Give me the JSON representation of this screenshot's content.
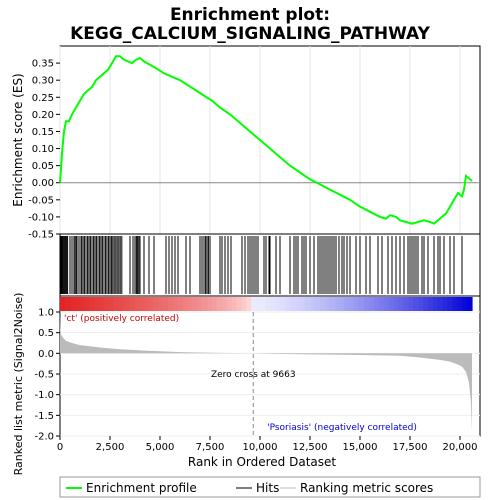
{
  "title_line1": "Enrichment plot:",
  "title_line2": "KEGG_CALCIUM_SIGNALING_PATHWAY",
  "ylabel_top": "Enrichment score (ES)",
  "ylabel_bottom": "Ranked list metric (Signal2Noise)",
  "xlabel": "Rank in Ordered Dataset",
  "annotation_pos": "'ct' (positively correlated)",
  "annotation_neg": "'Psoriasis' (negatively correlated)",
  "zero_cross_label": "Zero cross at 9663",
  "legend": {
    "enrichment": "Enrichment profile",
    "hits": "Hits",
    "ranking": "Ranking metric scores"
  },
  "colors": {
    "enrichment": "#00ff00",
    "positive": "#ff0000",
    "negative": "#0000ff",
    "metric_fill": "#bbbbbb"
  },
  "chart_data": {
    "type": "line",
    "n_genes": 20600,
    "zero_cross": 9663,
    "es": {
      "x": [
        0,
        60,
        120,
        200,
        300,
        450,
        600,
        800,
        1000,
        1200,
        1400,
        1600,
        1800,
        2000,
        2200,
        2400,
        2600,
        2800,
        3000,
        3200,
        3400,
        3600,
        3800,
        4000,
        4200,
        4500,
        4800,
        5200,
        5600,
        6000,
        6400,
        6800,
        7200,
        7600,
        8000,
        8500,
        9000,
        9500,
        10000,
        10500,
        11000,
        11500,
        12000,
        12500,
        13000,
        13500,
        14000,
        14500,
        15000,
        15500,
        16000,
        16300,
        16500,
        16800,
        17000,
        17300,
        17600,
        17900,
        18200,
        18500,
        18700,
        18900,
        19100,
        19300,
        19500,
        19700,
        19900,
        20100,
        20200,
        20300,
        20400,
        20600
      ],
      "y": [
        0.0,
        0.05,
        0.1,
        0.15,
        0.18,
        0.18,
        0.2,
        0.22,
        0.24,
        0.26,
        0.27,
        0.28,
        0.3,
        0.31,
        0.32,
        0.33,
        0.35,
        0.37,
        0.37,
        0.36,
        0.355,
        0.35,
        0.36,
        0.365,
        0.355,
        0.345,
        0.335,
        0.32,
        0.31,
        0.3,
        0.285,
        0.27,
        0.255,
        0.24,
        0.22,
        0.2,
        0.175,
        0.15,
        0.125,
        0.1,
        0.075,
        0.05,
        0.03,
        0.01,
        -0.005,
        -0.02,
        -0.035,
        -0.05,
        -0.07,
        -0.085,
        -0.1,
        -0.105,
        -0.095,
        -0.1,
        -0.11,
        -0.115,
        -0.12,
        -0.115,
        -0.11,
        -0.115,
        -0.12,
        -0.11,
        -0.1,
        -0.09,
        -0.07,
        -0.05,
        -0.03,
        -0.04,
        -0.02,
        0.02,
        0.015,
        0.005
      ],
      "ylim": [
        -0.15,
        0.4
      ],
      "yticks": [
        -0.15,
        -0.1,
        -0.05,
        0.0,
        0.05,
        0.1,
        0.15,
        0.2,
        0.25,
        0.3,
        0.35
      ]
    },
    "metric": {
      "x": [
        0,
        20,
        60,
        150,
        300,
        600,
        1000,
        1500,
        2000,
        3000,
        4000,
        5000,
        6000,
        7000,
        8000,
        9000,
        9663,
        10500,
        12000,
        13500,
        15000,
        16000,
        17000,
        17500,
        18000,
        18500,
        19000,
        19500,
        19800,
        20100,
        20300,
        20450,
        20550,
        20600
      ],
      "y": [
        1.0,
        0.6,
        0.45,
        0.38,
        0.3,
        0.25,
        0.2,
        0.17,
        0.14,
        0.1,
        0.07,
        0.05,
        0.03,
        0.02,
        0.01,
        0.005,
        0.0,
        -0.01,
        -0.02,
        -0.03,
        -0.04,
        -0.05,
        -0.06,
        -0.08,
        -0.1,
        -0.13,
        -0.16,
        -0.2,
        -0.25,
        -0.32,
        -0.45,
        -0.7,
        -1.2,
        -1.9
      ],
      "ylim": [
        -2.0,
        1.0
      ],
      "yticks": [
        -2.0,
        -1.5,
        -1.0,
        -0.5,
        0.0,
        0.5,
        1.0
      ]
    },
    "hits": [
      50,
      90,
      130,
      180,
      230,
      280,
      330,
      380,
      500,
      600,
      700,
      760,
      820,
      900,
      1000,
      1080,
      1150,
      1220,
      1300,
      1380,
      1450,
      1520,
      1600,
      1680,
      1750,
      1820,
      1900,
      1980,
      2050,
      2120,
      2200,
      2280,
      2350,
      2430,
      2500,
      2570,
      2640,
      2710,
      2790,
      2860,
      2940,
      3010,
      3090,
      3500,
      3650,
      3750,
      3820,
      3880,
      3940,
      4000,
      4200,
      4450,
      4700,
      5300,
      5450,
      5600,
      5750,
      5900,
      6300,
      6500,
      7000,
      7100,
      7200,
      7280,
      7350,
      7420,
      7500,
      8000,
      8100,
      8250,
      8400,
      8550,
      9100,
      9250,
      9400,
      9500,
      9600,
      9700,
      9800,
      9900,
      10200,
      10300,
      10450,
      10500,
      10800,
      11000,
      11500,
      11700,
      11800,
      11900,
      12100,
      12200,
      12300,
      12500,
      12700,
      12900,
      13000,
      13100,
      13200,
      13300,
      13400,
      13500,
      13600,
      13700,
      13800,
      13950,
      14100,
      14200,
      14350,
      14500,
      14800,
      15000,
      15300,
      15500,
      15900,
      16100,
      16400,
      16600,
      16800,
      17000,
      17200,
      17400,
      17500,
      17600,
      17700,
      17800,
      17900,
      18100,
      18200,
      18400,
      18700,
      18900,
      19000,
      19200,
      19500,
      19700,
      20100
    ],
    "xlim": [
      0,
      21000
    ],
    "xticks": [
      0,
      2500,
      5000,
      7500,
      10000,
      12500,
      15000,
      17500,
      20000
    ],
    "xtick_labels": [
      "0",
      "2,500",
      "5,000",
      "7,500",
      "10,000",
      "12,500",
      "15,000",
      "17,500",
      "20,000"
    ]
  }
}
